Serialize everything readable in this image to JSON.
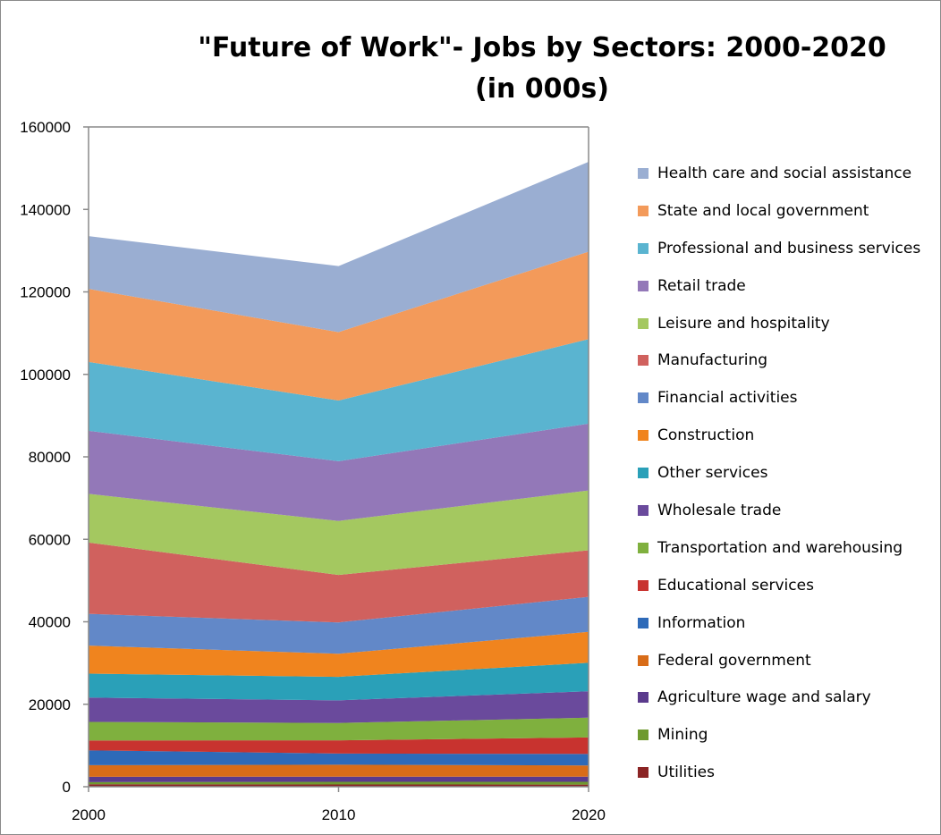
{
  "chart_data": {
    "type": "area",
    "stacked": true,
    "title": "\"Future of Work\"- Jobs by Sectors: 2000-2020 (in 000s)",
    "xlabel": "",
    "ylabel": "",
    "x": [
      "2000",
      "2010",
      "2020"
    ],
    "ylim": [
      0,
      160000
    ],
    "yticks": [
      "0",
      "20000",
      "40000",
      "60000",
      "80000",
      "100000",
      "120000",
      "140000",
      "160000"
    ],
    "grid": false,
    "legend_position": "right",
    "series": [
      {
        "name": "Utilities",
        "color": "#8b2424",
        "values": [
          600,
          550,
          520
        ]
      },
      {
        "name": "Mining",
        "color": "#6f9a2e",
        "values": [
          520,
          650,
          680
        ]
      },
      {
        "name": "Agriculture wage and salary",
        "color": "#5a3a8c",
        "values": [
          1300,
          1250,
          1250
        ]
      },
      {
        "name": "Federal government",
        "color": "#d86c18",
        "values": [
          2800,
          2900,
          2700
        ]
      },
      {
        "name": "Information",
        "color": "#2e6ab8",
        "values": [
          3600,
          2700,
          2800
        ]
      },
      {
        "name": "Educational services",
        "color": "#c8332f",
        "values": [
          2400,
          3200,
          4000
        ]
      },
      {
        "name": "Transportation and warehousing",
        "color": "#7fb03e",
        "values": [
          4500,
          4200,
          4800
        ]
      },
      {
        "name": "Wholesale trade",
        "color": "#6a4a9c",
        "values": [
          5900,
          5500,
          6400
        ]
      },
      {
        "name": "Other services",
        "color": "#2aa0b8",
        "values": [
          5800,
          5700,
          6900
        ]
      },
      {
        "name": "Construction",
        "color": "#f0841e",
        "values": [
          6800,
          5600,
          7500
        ]
      },
      {
        "name": "Financial activities",
        "color": "#6288c8",
        "values": [
          7700,
          7600,
          8500
        ]
      },
      {
        "name": "Manufacturing",
        "color": "#d0615e",
        "values": [
          17300,
          11500,
          11300
        ]
      },
      {
        "name": "Leisure and hospitality",
        "color": "#a4c860",
        "values": [
          11800,
          13100,
          14500
        ]
      },
      {
        "name": "Retail trade",
        "color": "#9378b8",
        "values": [
          15300,
          14500,
          16200
        ]
      },
      {
        "name": "Professional and business services",
        "color": "#5ab4d0",
        "values": [
          16700,
          14700,
          20500
        ]
      },
      {
        "name": "State and local government",
        "color": "#f39a5a",
        "values": [
          17700,
          16600,
          21200
        ]
      },
      {
        "name": "Health care and social assistance",
        "color": "#9aaed2",
        "values": [
          12800,
          16000,
          21800
        ]
      }
    ]
  }
}
